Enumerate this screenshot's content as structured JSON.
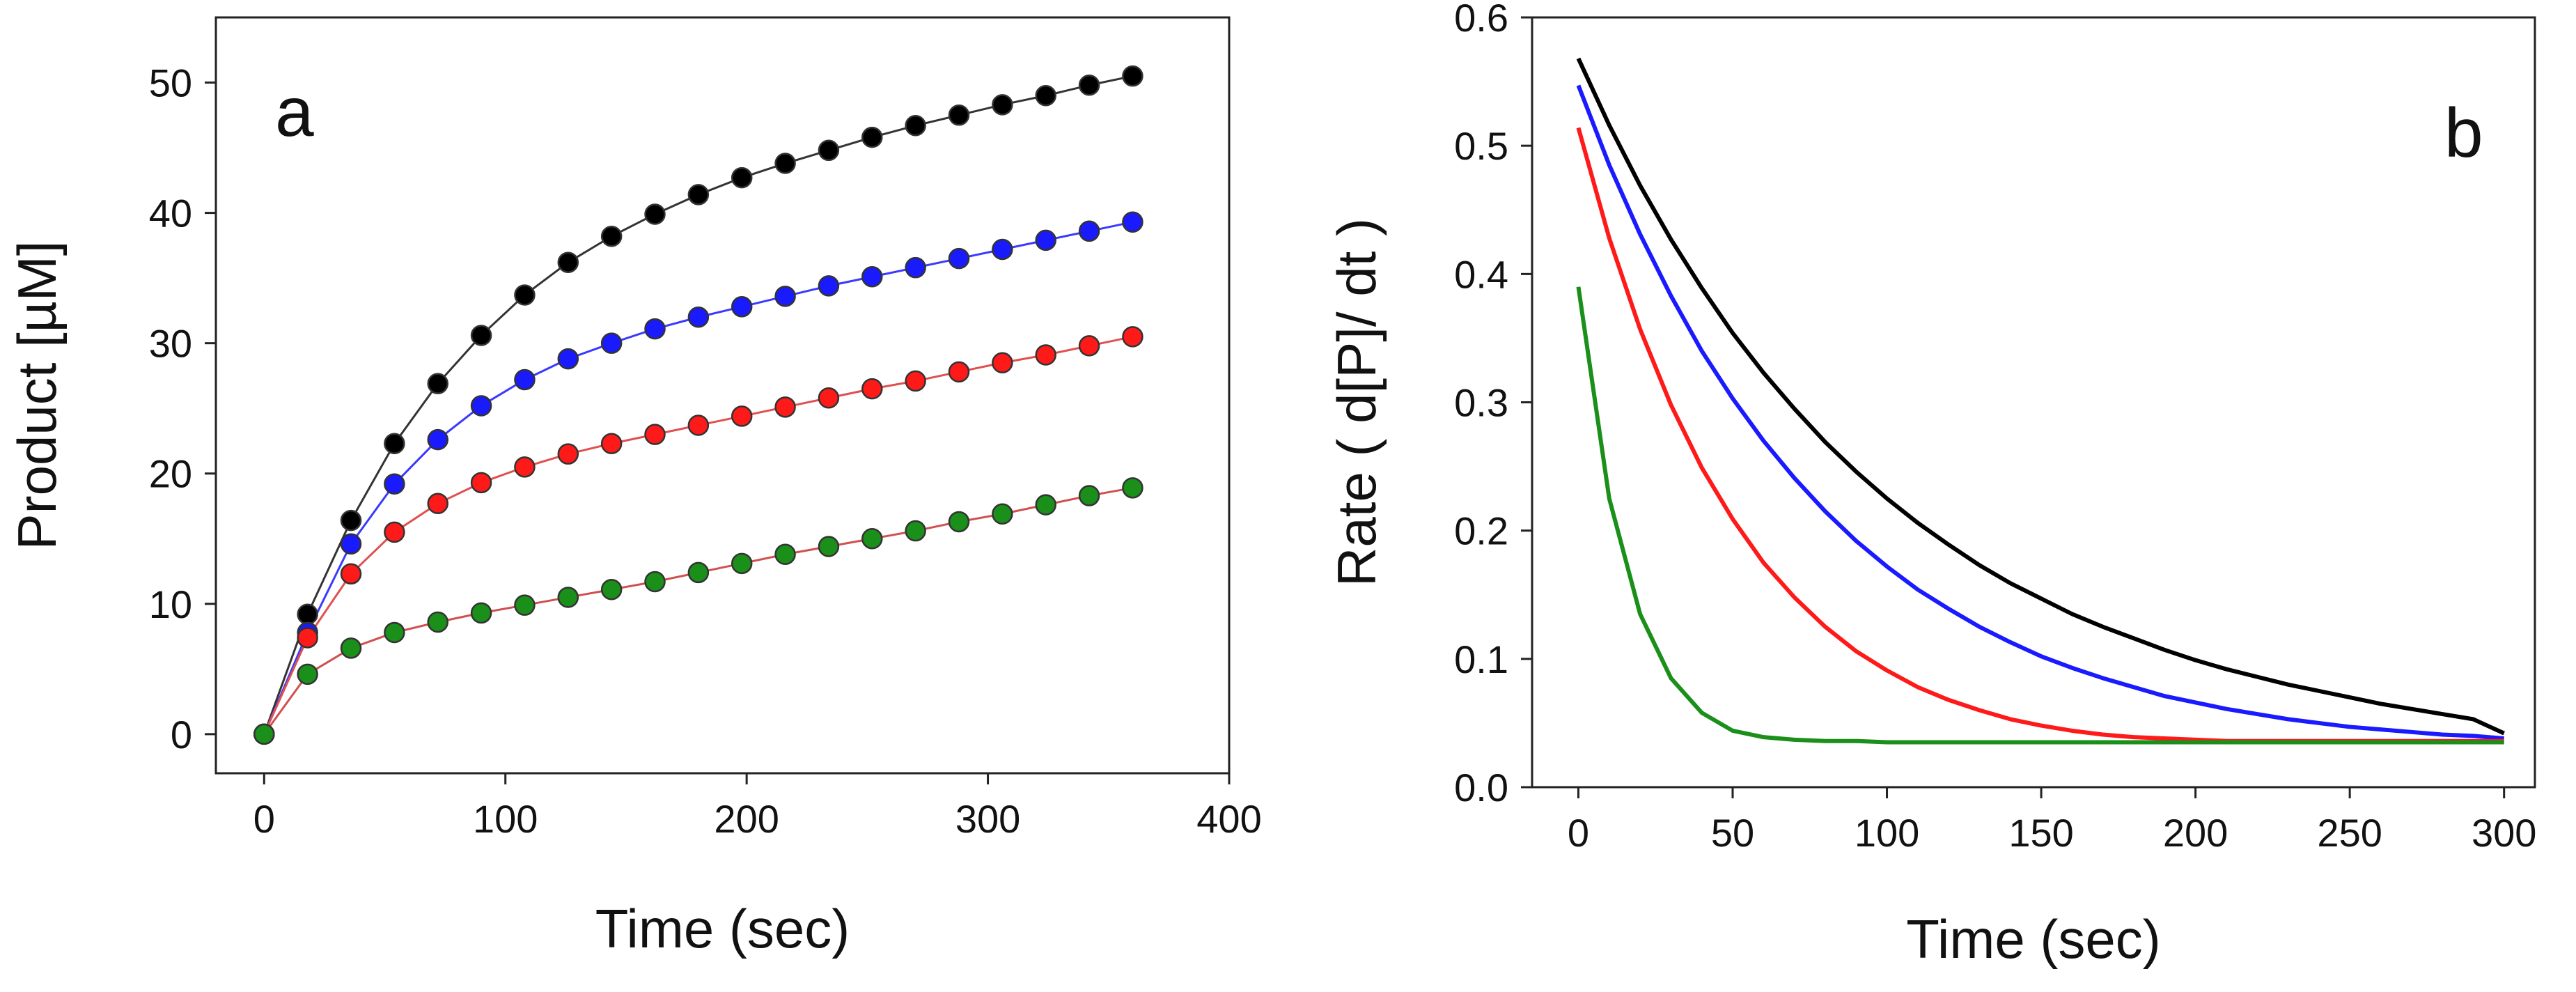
{
  "chart_data": [
    {
      "panel": "a",
      "type": "line",
      "xlabel": "Time  (sec)",
      "ylabel": "Product  [µM]",
      "xlim": [
        -20,
        400
      ],
      "ylim": [
        -3,
        55
      ],
      "xticks": [
        0,
        100,
        200,
        300,
        400
      ],
      "yticks": [
        0,
        10,
        20,
        30,
        40,
        50
      ],
      "grid": false,
      "markers": true,
      "x": [
        0,
        18,
        36,
        54,
        72,
        90,
        108,
        126,
        144,
        162,
        180,
        198,
        216,
        234,
        252,
        270,
        288,
        306,
        324,
        342,
        360
      ],
      "series": [
        {
          "color": "#000000",
          "line_color": "#333333",
          "values": [
            0,
            9.2,
            16.4,
            22.3,
            26.9,
            30.6,
            33.7,
            36.2,
            38.2,
            39.9,
            41.4,
            42.7,
            43.8,
            44.8,
            45.8,
            46.7,
            47.5,
            48.3,
            49.0,
            49.8,
            50.5
          ]
        },
        {
          "color": "#1a1aff",
          "line_color": "#3a3aff",
          "values": [
            0,
            7.8,
            14.6,
            19.2,
            22.6,
            25.2,
            27.2,
            28.8,
            30.0,
            31.1,
            32.0,
            32.8,
            33.6,
            34.4,
            35.1,
            35.8,
            36.5,
            37.2,
            37.9,
            38.6,
            39.3
          ]
        },
        {
          "color": "#ff1a1a",
          "line_color": "#e05050",
          "values": [
            0,
            7.4,
            12.3,
            15.5,
            17.7,
            19.3,
            20.5,
            21.5,
            22.3,
            23.0,
            23.7,
            24.4,
            25.1,
            25.8,
            26.5,
            27.1,
            27.8,
            28.5,
            29.1,
            29.8,
            30.5
          ]
        },
        {
          "color": "#1a8f1a",
          "line_color": "#d05050",
          "values": [
            0,
            4.6,
            6.6,
            7.8,
            8.6,
            9.3,
            9.9,
            10.5,
            11.1,
            11.7,
            12.4,
            13.1,
            13.8,
            14.4,
            15.0,
            15.6,
            16.3,
            16.9,
            17.6,
            18.3,
            18.9
          ]
        }
      ]
    },
    {
      "panel": "b",
      "type": "line",
      "xlabel": "Time  (sec)",
      "ylabel": "Rate  ( d[P]/ dt )",
      "xlim": [
        -15,
        310
      ],
      "ylim": [
        0.0,
        0.6
      ],
      "xticks": [
        0,
        50,
        100,
        150,
        200,
        250,
        300
      ],
      "yticks": [
        0.0,
        0.1,
        0.2,
        0.3,
        0.4,
        0.5,
        0.6
      ],
      "grid": false,
      "markers": false,
      "x": [
        0,
        10,
        20,
        30,
        40,
        50,
        60,
        70,
        80,
        90,
        100,
        110,
        120,
        130,
        140,
        150,
        160,
        170,
        180,
        190,
        200,
        210,
        220,
        230,
        240,
        250,
        260,
        270,
        280,
        290,
        300
      ],
      "series": [
        {
          "color": "#000000",
          "values": [
            0.568,
            0.516,
            0.469,
            0.427,
            0.389,
            0.354,
            0.323,
            0.295,
            0.269,
            0.246,
            0.225,
            0.206,
            0.189,
            0.173,
            0.159,
            0.147,
            0.135,
            0.125,
            0.116,
            0.107,
            0.099,
            0.092,
            0.086,
            0.08,
            0.075,
            0.07,
            0.065,
            0.061,
            0.057,
            0.053,
            0.042
          ]
        },
        {
          "color": "#1a1aff",
          "values": [
            0.547,
            0.485,
            0.431,
            0.383,
            0.34,
            0.303,
            0.27,
            0.241,
            0.215,
            0.192,
            0.172,
            0.154,
            0.139,
            0.125,
            0.113,
            0.102,
            0.093,
            0.085,
            0.078,
            0.071,
            0.066,
            0.061,
            0.057,
            0.053,
            0.05,
            0.047,
            0.045,
            0.043,
            0.041,
            0.04,
            0.038
          ]
        },
        {
          "color": "#ff1a1a",
          "values": [
            0.514,
            0.428,
            0.357,
            0.298,
            0.249,
            0.209,
            0.175,
            0.148,
            0.125,
            0.106,
            0.091,
            0.078,
            0.068,
            0.06,
            0.053,
            0.048,
            0.044,
            0.041,
            0.039,
            0.038,
            0.037,
            0.036,
            0.036,
            0.036,
            0.036,
            0.036,
            0.036,
            0.036,
            0.036,
            0.036,
            0.036
          ]
        },
        {
          "color": "#1a8f1a",
          "values": [
            0.39,
            0.225,
            0.135,
            0.085,
            0.058,
            0.044,
            0.039,
            0.037,
            0.036,
            0.036,
            0.035,
            0.035,
            0.035,
            0.035,
            0.035,
            0.035,
            0.035,
            0.035,
            0.035,
            0.035,
            0.035,
            0.035,
            0.035,
            0.035,
            0.035,
            0.035,
            0.035,
            0.035,
            0.035,
            0.035,
            0.035
          ]
        }
      ]
    }
  ]
}
